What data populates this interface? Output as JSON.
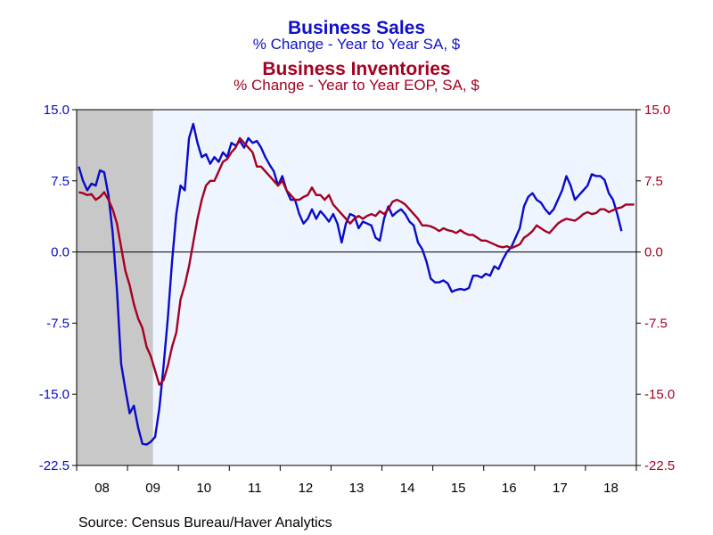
{
  "titles": {
    "sales_title": "Business Sales",
    "sales_subtitle": "% Change - Year to Year    SA, $",
    "inv_title": "Business Inventories",
    "inv_subtitle": "% Change - Year to Year    EOP, SA, $"
  },
  "source": "Source:  Census Bureau/Haver Analytics",
  "colors": {
    "sales": "#0a0ac8",
    "inventories": "#a50021",
    "plot_bg": "#eef5ff",
    "recession": "#c8c8c8",
    "frame": "#000000"
  },
  "chart_data": {
    "type": "line",
    "x_start": "2008-01",
    "x_end": "2018-12",
    "x_tick_labels": [
      "08",
      "09",
      "10",
      "11",
      "12",
      "13",
      "14",
      "15",
      "16",
      "17",
      "18"
    ],
    "ylim": [
      -22.5,
      15.0
    ],
    "left_y_ticks": [
      "15.0",
      "7.5",
      "0.0",
      "-7.5",
      "-15.0",
      "-22.5"
    ],
    "right_y_ticks": [
      "15.0",
      "7.5",
      "0.0",
      "-7.5",
      "-15.0",
      "-22.5"
    ],
    "recession_shading": [
      "2008-01",
      "2009-06"
    ],
    "series": [
      {
        "name": "Business Sales",
        "color": "#0a0ac8",
        "axis": "left",
        "points": [
          [
            "2008-01",
            9.0
          ],
          [
            "2008-02",
            7.5
          ],
          [
            "2008-03",
            6.5
          ],
          [
            "2008-04",
            7.2
          ],
          [
            "2008-05",
            7.0
          ],
          [
            "2008-06",
            8.6
          ],
          [
            "2008-07",
            8.4
          ],
          [
            "2008-08",
            6.0
          ],
          [
            "2008-09",
            2.0
          ],
          [
            "2008-10",
            -4.0
          ],
          [
            "2008-11",
            -11.8
          ],
          [
            "2008-12",
            -14.5
          ],
          [
            "2009-01",
            -17.0
          ],
          [
            "2009-02",
            -16.2
          ],
          [
            "2009-03",
            -18.5
          ],
          [
            "2009-04",
            -20.2
          ],
          [
            "2009-05",
            -20.3
          ],
          [
            "2009-06",
            -20.0
          ],
          [
            "2009-07",
            -19.5
          ],
          [
            "2009-08",
            -16.5
          ],
          [
            "2009-09",
            -12.0
          ],
          [
            "2009-10",
            -7.0
          ],
          [
            "2009-11",
            -1.0
          ],
          [
            "2009-12",
            4.0
          ],
          [
            "2010-01",
            7.0
          ],
          [
            "2010-02",
            6.5
          ],
          [
            "2010-03",
            12.0
          ],
          [
            "2010-04",
            13.5
          ],
          [
            "2010-05",
            11.5
          ],
          [
            "2010-06",
            10.0
          ],
          [
            "2010-07",
            10.3
          ],
          [
            "2010-08",
            9.3
          ],
          [
            "2010-09",
            10.0
          ],
          [
            "2010-10",
            9.5
          ],
          [
            "2010-11",
            10.5
          ],
          [
            "2010-12",
            10.0
          ],
          [
            "2011-01",
            11.5
          ],
          [
            "2011-02",
            11.2
          ],
          [
            "2011-03",
            11.7
          ],
          [
            "2011-04",
            11.0
          ],
          [
            "2011-05",
            12.0
          ],
          [
            "2011-06",
            11.5
          ],
          [
            "2011-07",
            11.7
          ],
          [
            "2011-08",
            11.0
          ],
          [
            "2011-09",
            10.0
          ],
          [
            "2011-10",
            9.2
          ],
          [
            "2011-11",
            8.5
          ],
          [
            "2011-12",
            7.0
          ],
          [
            "2012-01",
            8.0
          ],
          [
            "2012-02",
            6.5
          ],
          [
            "2012-03",
            5.5
          ],
          [
            "2012-04",
            5.5
          ],
          [
            "2012-05",
            4.0
          ],
          [
            "2012-06",
            3.0
          ],
          [
            "2012-07",
            3.5
          ],
          [
            "2012-08",
            4.5
          ],
          [
            "2012-09",
            3.5
          ],
          [
            "2012-10",
            4.3
          ],
          [
            "2012-11",
            3.8
          ],
          [
            "2012-12",
            3.2
          ],
          [
            "2013-01",
            4.0
          ],
          [
            "2013-02",
            3.0
          ],
          [
            "2013-03",
            1.0
          ],
          [
            "2013-04",
            3.0
          ],
          [
            "2013-05",
            4.0
          ],
          [
            "2013-06",
            3.8
          ],
          [
            "2013-07",
            2.5
          ],
          [
            "2013-08",
            3.2
          ],
          [
            "2013-09",
            3.0
          ],
          [
            "2013-10",
            2.8
          ],
          [
            "2013-11",
            1.5
          ],
          [
            "2013-12",
            1.2
          ],
          [
            "2014-01",
            3.5
          ],
          [
            "2014-02",
            4.8
          ],
          [
            "2014-03",
            3.8
          ],
          [
            "2014-04",
            4.2
          ],
          [
            "2014-05",
            4.5
          ],
          [
            "2014-06",
            4.0
          ],
          [
            "2014-07",
            3.2
          ],
          [
            "2014-08",
            2.8
          ],
          [
            "2014-09",
            1.0
          ],
          [
            "2014-10",
            0.3
          ],
          [
            "2014-11",
            -1.0
          ],
          [
            "2014-12",
            -2.8
          ],
          [
            "2015-01",
            -3.2
          ],
          [
            "2015-02",
            -3.2
          ],
          [
            "2015-03",
            -3.0
          ],
          [
            "2015-04",
            -3.3
          ],
          [
            "2015-05",
            -4.2
          ],
          [
            "2015-06",
            -4.0
          ],
          [
            "2015-07",
            -3.9
          ],
          [
            "2015-08",
            -4.0
          ],
          [
            "2015-09",
            -3.8
          ],
          [
            "2015-10",
            -2.5
          ],
          [
            "2015-11",
            -2.5
          ],
          [
            "2015-12",
            -2.7
          ],
          [
            "2016-01",
            -2.3
          ],
          [
            "2016-02",
            -2.5
          ],
          [
            "2016-03",
            -1.5
          ],
          [
            "2016-04",
            -1.8
          ],
          [
            "2016-05",
            -0.8
          ],
          [
            "2016-06",
            0.0
          ],
          [
            "2016-07",
            0.5
          ],
          [
            "2016-08",
            1.5
          ],
          [
            "2016-09",
            2.5
          ],
          [
            "2016-10",
            4.8
          ],
          [
            "2016-11",
            5.8
          ],
          [
            "2016-12",
            6.2
          ],
          [
            "2017-01",
            5.5
          ],
          [
            "2017-02",
            5.2
          ],
          [
            "2017-03",
            4.5
          ],
          [
            "2017-04",
            4.0
          ],
          [
            "2017-05",
            4.5
          ],
          [
            "2017-06",
            5.5
          ],
          [
            "2017-07",
            6.5
          ],
          [
            "2017-08",
            8.0
          ],
          [
            "2017-09",
            7.0
          ],
          [
            "2017-10",
            5.5
          ],
          [
            "2017-11",
            6.0
          ],
          [
            "2017-12",
            6.5
          ],
          [
            "2018-01",
            7.0
          ],
          [
            "2018-02",
            8.2
          ],
          [
            "2018-03",
            8.0
          ],
          [
            "2018-04",
            8.0
          ],
          [
            "2018-05",
            7.6
          ],
          [
            "2018-06",
            6.2
          ],
          [
            "2018-07",
            5.5
          ],
          [
            "2018-08",
            4.0
          ],
          [
            "2018-09",
            2.2
          ]
        ]
      },
      {
        "name": "Business Inventories",
        "color": "#a50021",
        "axis": "right",
        "points": [
          [
            "2008-01",
            6.3
          ],
          [
            "2008-02",
            6.2
          ],
          [
            "2008-03",
            6.0
          ],
          [
            "2008-04",
            6.1
          ],
          [
            "2008-05",
            5.5
          ],
          [
            "2008-06",
            5.8
          ],
          [
            "2008-07",
            6.3
          ],
          [
            "2008-08",
            5.5
          ],
          [
            "2008-09",
            4.5
          ],
          [
            "2008-10",
            3.0
          ],
          [
            "2008-11",
            0.5
          ],
          [
            "2008-12",
            -2.0
          ],
          [
            "2009-01",
            -3.5
          ],
          [
            "2009-02",
            -5.5
          ],
          [
            "2009-03",
            -7.0
          ],
          [
            "2009-04",
            -8.0
          ],
          [
            "2009-05",
            -10.0
          ],
          [
            "2009-06",
            -11.0
          ],
          [
            "2009-07",
            -12.5
          ],
          [
            "2009-08",
            -14.0
          ],
          [
            "2009-09",
            -13.5
          ],
          [
            "2009-10",
            -12.0
          ],
          [
            "2009-11",
            -10.0
          ],
          [
            "2009-12",
            -8.5
          ],
          [
            "2010-01",
            -5.0
          ],
          [
            "2010-02",
            -3.5
          ],
          [
            "2010-03",
            -1.5
          ],
          [
            "2010-04",
            1.0
          ],
          [
            "2010-05",
            3.5
          ],
          [
            "2010-06",
            5.5
          ],
          [
            "2010-07",
            7.0
          ],
          [
            "2010-08",
            7.5
          ],
          [
            "2010-09",
            7.5
          ],
          [
            "2010-10",
            8.5
          ],
          [
            "2010-11",
            9.5
          ],
          [
            "2010-12",
            9.8
          ],
          [
            "2011-01",
            10.5
          ],
          [
            "2011-02",
            11.0
          ],
          [
            "2011-03",
            12.0
          ],
          [
            "2011-04",
            11.5
          ],
          [
            "2011-05",
            11.0
          ],
          [
            "2011-06",
            10.5
          ],
          [
            "2011-07",
            9.0
          ],
          [
            "2011-08",
            9.0
          ],
          [
            "2011-09",
            8.5
          ],
          [
            "2011-10",
            8.0
          ],
          [
            "2011-11",
            7.5
          ],
          [
            "2011-12",
            7.0
          ],
          [
            "2012-01",
            7.5
          ],
          [
            "2012-02",
            6.5
          ],
          [
            "2012-03",
            6.0
          ],
          [
            "2012-04",
            5.5
          ],
          [
            "2012-05",
            5.5
          ],
          [
            "2012-06",
            5.8
          ],
          [
            "2012-07",
            6.0
          ],
          [
            "2012-08",
            6.8
          ],
          [
            "2012-09",
            6.0
          ],
          [
            "2012-10",
            6.0
          ],
          [
            "2012-11",
            5.5
          ],
          [
            "2012-12",
            6.0
          ],
          [
            "2013-01",
            5.0
          ],
          [
            "2013-02",
            4.5
          ],
          [
            "2013-03",
            4.0
          ],
          [
            "2013-04",
            3.5
          ],
          [
            "2013-05",
            3.0
          ],
          [
            "2013-06",
            3.5
          ],
          [
            "2013-07",
            3.8
          ],
          [
            "2013-08",
            3.5
          ],
          [
            "2013-09",
            3.8
          ],
          [
            "2013-10",
            4.0
          ],
          [
            "2013-11",
            3.8
          ],
          [
            "2013-12",
            4.3
          ],
          [
            "2014-01",
            4.0
          ],
          [
            "2014-02",
            4.5
          ],
          [
            "2014-03",
            5.3
          ],
          [
            "2014-04",
            5.5
          ],
          [
            "2014-05",
            5.3
          ],
          [
            "2014-06",
            5.0
          ],
          [
            "2014-07",
            4.5
          ],
          [
            "2014-08",
            4.0
          ],
          [
            "2014-09",
            3.5
          ],
          [
            "2014-10",
            2.8
          ],
          [
            "2014-11",
            2.8
          ],
          [
            "2014-12",
            2.7
          ],
          [
            "2015-01",
            2.5
          ],
          [
            "2015-02",
            2.2
          ],
          [
            "2015-03",
            2.5
          ],
          [
            "2015-04",
            2.3
          ],
          [
            "2015-05",
            2.2
          ],
          [
            "2015-06",
            2.0
          ],
          [
            "2015-07",
            2.3
          ],
          [
            "2015-08",
            2.0
          ],
          [
            "2015-09",
            1.8
          ],
          [
            "2015-10",
            1.8
          ],
          [
            "2015-11",
            1.5
          ],
          [
            "2015-12",
            1.2
          ],
          [
            "2016-01",
            1.2
          ],
          [
            "2016-02",
            1.0
          ],
          [
            "2016-03",
            0.8
          ],
          [
            "2016-04",
            0.6
          ],
          [
            "2016-05",
            0.5
          ],
          [
            "2016-06",
            0.6
          ],
          [
            "2016-07",
            0.4
          ],
          [
            "2016-08",
            0.6
          ],
          [
            "2016-09",
            0.8
          ],
          [
            "2016-10",
            1.5
          ],
          [
            "2016-11",
            1.8
          ],
          [
            "2016-12",
            2.2
          ],
          [
            "2017-01",
            2.8
          ],
          [
            "2017-02",
            2.5
          ],
          [
            "2017-03",
            2.2
          ],
          [
            "2017-04",
            2.0
          ],
          [
            "2017-05",
            2.5
          ],
          [
            "2017-06",
            3.0
          ],
          [
            "2017-07",
            3.3
          ],
          [
            "2017-08",
            3.5
          ],
          [
            "2017-09",
            3.4
          ],
          [
            "2017-10",
            3.3
          ],
          [
            "2017-11",
            3.6
          ],
          [
            "2017-12",
            4.0
          ],
          [
            "2018-01",
            4.2
          ],
          [
            "2018-02",
            4.0
          ],
          [
            "2018-03",
            4.1
          ],
          [
            "2018-04",
            4.5
          ],
          [
            "2018-05",
            4.5
          ],
          [
            "2018-06",
            4.2
          ],
          [
            "2018-07",
            4.4
          ],
          [
            "2018-08",
            4.6
          ],
          [
            "2018-09",
            4.7
          ],
          [
            "2018-10",
            5.0
          ],
          [
            "2018-11",
            5.0
          ],
          [
            "2018-12",
            5.0
          ]
        ]
      }
    ]
  }
}
